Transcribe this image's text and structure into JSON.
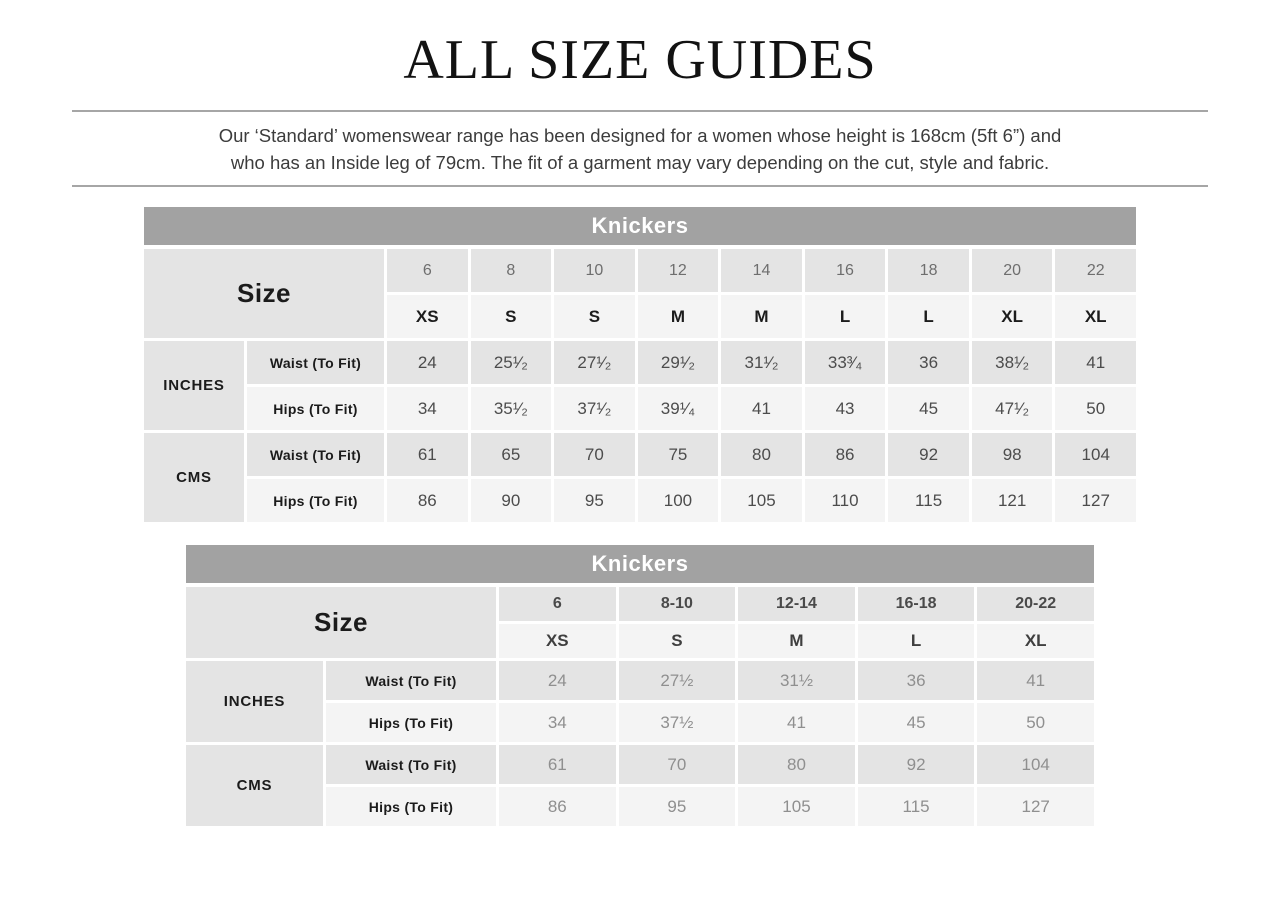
{
  "colors": {
    "table_header_bg": "#a2a2a2",
    "row_shaded_bg": "#e4e4e4",
    "row_plain_bg": "#f4f4f4",
    "rule_color": "#a6a6a6",
    "value_color_table1": "#4c4c4c",
    "value_color_table2": "#8f8f8f"
  },
  "header": {
    "title": "ALL SIZE GUIDES",
    "description_line1": "Our ‘Standard’ womenswear range has been designed for a women whose height is 168cm (5ft 6”) and",
    "description_line2": "who has an Inside leg of 79cm. The fit of a garment may vary depending on the cut, style and fabric."
  },
  "table1": {
    "title": "Knickers",
    "size_label": "Size",
    "sizes_numeric": [
      "6",
      "8",
      "10",
      "12",
      "14",
      "16",
      "18",
      "20",
      "22"
    ],
    "sizes_alpha": [
      "XS",
      "S",
      "S",
      "M",
      "M",
      "L",
      "L",
      "XL",
      "XL"
    ],
    "sections": [
      {
        "unit": "INCHES",
        "rows": [
          {
            "label": "Waist (To Fit)",
            "values": [
              "24",
              "25¹⁄₂",
              "27¹⁄₂",
              "29¹⁄₂",
              "31¹⁄₂",
              "33³⁄₄",
              "36",
              "38¹⁄₂",
              "41"
            ]
          },
          {
            "label": "Hips (To Fit)",
            "values": [
              "34",
              "35¹⁄₂",
              "37¹⁄₂",
              "39¹⁄₄",
              "41",
              "43",
              "45",
              "47¹⁄₂",
              "50"
            ]
          }
        ]
      },
      {
        "unit": "CMS",
        "rows": [
          {
            "label": "Waist (To Fit)",
            "values": [
              "61",
              "65",
              "70",
              "75",
              "80",
              "86",
              "92",
              "98",
              "104"
            ]
          },
          {
            "label": "Hips (To Fit)",
            "values": [
              "86",
              "90",
              "95",
              "100",
              "105",
              "110",
              "115",
              "121",
              "127"
            ]
          }
        ]
      }
    ]
  },
  "table2": {
    "title": "Knickers",
    "size_label": "Size",
    "sizes_numeric": [
      "6",
      "8-10",
      "12-14",
      "16-18",
      "20-22"
    ],
    "sizes_alpha": [
      "XS",
      "S",
      "M",
      "L",
      "XL"
    ],
    "sections": [
      {
        "unit": "INCHES",
        "rows": [
          {
            "label": "Waist (To Fit)",
            "values": [
              "24",
              "27½",
              "31½",
              "36",
              "41"
            ]
          },
          {
            "label": "Hips (To Fit)",
            "values": [
              "34",
              "37½",
              "41",
              "45",
              "50"
            ]
          }
        ]
      },
      {
        "unit": "CMS",
        "rows": [
          {
            "label": "Waist (To Fit)",
            "values": [
              "61",
              "70",
              "80",
              "92",
              "104"
            ]
          },
          {
            "label": "Hips (To Fit)",
            "values": [
              "86",
              "95",
              "105",
              "115",
              "127"
            ]
          }
        ]
      }
    ]
  }
}
